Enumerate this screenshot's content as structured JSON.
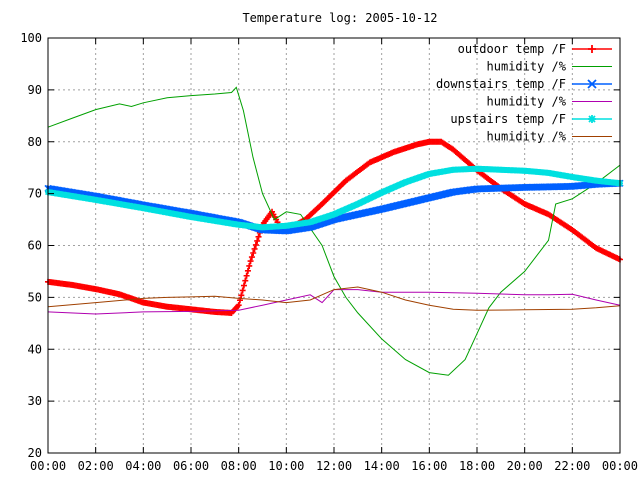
{
  "chart_data": {
    "type": "line",
    "title": "Temperature log: 2005-10-12",
    "xlabel": "",
    "ylabel": "",
    "xlim": [
      0,
      24
    ],
    "ylim": [
      20,
      100
    ],
    "grid": true,
    "legend_position": "top-right",
    "x_tick_labels": [
      "00:00",
      "02:00",
      "04:00",
      "06:00",
      "08:00",
      "10:00",
      "12:00",
      "14:00",
      "16:00",
      "18:00",
      "20:00",
      "22:00",
      "00:00"
    ],
    "y_tick_labels": [
      "20",
      "30",
      "40",
      "50",
      "60",
      "70",
      "80",
      "90",
      "100"
    ],
    "series": [
      {
        "name": "outdoor temp /F",
        "color": "#ff0000",
        "marker": "+",
        "points": [
          [
            0,
            53
          ],
          [
            1,
            52.4
          ],
          [
            2,
            51.6
          ],
          [
            3,
            50.6
          ],
          [
            4,
            49
          ],
          [
            5,
            48.2
          ],
          [
            6,
            47.7
          ],
          [
            7,
            47.2
          ],
          [
            7.7,
            47
          ],
          [
            8,
            48.5
          ],
          [
            8.5,
            57
          ],
          [
            9,
            64
          ],
          [
            9.4,
            66.5
          ],
          [
            9.8,
            63
          ],
          [
            10.2,
            63.5
          ],
          [
            10.8,
            65
          ],
          [
            11.5,
            68
          ],
          [
            12.5,
            72.5
          ],
          [
            13.5,
            76
          ],
          [
            14.5,
            78
          ],
          [
            15.5,
            79.5
          ],
          [
            16,
            80
          ],
          [
            16.5,
            80
          ],
          [
            17,
            78.5
          ],
          [
            17.5,
            76.5
          ],
          [
            18,
            74.5
          ],
          [
            19,
            71
          ],
          [
            20,
            68
          ],
          [
            21,
            66
          ],
          [
            22,
            63
          ],
          [
            23,
            59.5
          ],
          [
            24,
            57.3
          ]
        ]
      },
      {
        "name": "humidity /%",
        "color": "#00a000",
        "marker": "none",
        "points": [
          [
            0,
            82.8
          ],
          [
            1,
            84.5
          ],
          [
            2,
            86.2
          ],
          [
            3,
            87.3
          ],
          [
            3.5,
            86.8
          ],
          [
            4,
            87.5
          ],
          [
            5,
            88.5
          ],
          [
            6,
            88.9
          ],
          [
            7,
            89.2
          ],
          [
            7.7,
            89.5
          ],
          [
            7.9,
            90.5
          ],
          [
            8.2,
            86
          ],
          [
            8.6,
            77
          ],
          [
            9,
            70
          ],
          [
            9.5,
            65
          ],
          [
            10,
            66.5
          ],
          [
            10.6,
            66
          ],
          [
            11.5,
            60
          ],
          [
            12,
            54
          ],
          [
            12.5,
            50
          ],
          [
            13,
            47
          ],
          [
            14,
            42
          ],
          [
            15,
            38
          ],
          [
            16,
            35.5
          ],
          [
            16.8,
            35
          ],
          [
            17.5,
            38
          ],
          [
            18,
            43
          ],
          [
            18.5,
            48
          ],
          [
            19,
            51
          ],
          [
            20,
            55
          ],
          [
            21,
            61
          ],
          [
            21.3,
            68
          ],
          [
            22,
            69
          ],
          [
            23,
            72
          ],
          [
            24,
            75.5
          ]
        ]
      },
      {
        "name": "downstairs temp /F",
        "color": "#0060ff",
        "marker": "x",
        "points": [
          [
            0,
            71
          ],
          [
            2,
            69.5
          ],
          [
            4,
            67.8
          ],
          [
            6,
            66.2
          ],
          [
            8,
            64.5
          ],
          [
            9,
            63
          ],
          [
            10,
            62.8
          ],
          [
            11,
            63.5
          ],
          [
            12,
            65
          ],
          [
            14,
            67
          ],
          [
            16,
            69.2
          ],
          [
            17,
            70.3
          ],
          [
            18,
            70.9
          ],
          [
            20,
            71.2
          ],
          [
            22,
            71.4
          ],
          [
            23,
            71.8
          ],
          [
            24,
            72
          ]
        ]
      },
      {
        "name": "humidity /%",
        "color": "#b000b0",
        "marker": "none",
        "points": [
          [
            0,
            47.2
          ],
          [
            2,
            46.8
          ],
          [
            4,
            47.2
          ],
          [
            6,
            47.3
          ],
          [
            8,
            47.5
          ],
          [
            9,
            48.5
          ],
          [
            10,
            49.5
          ],
          [
            11,
            50.5
          ],
          [
            11.5,
            49
          ],
          [
            12,
            51.5
          ],
          [
            13,
            51.5
          ],
          [
            14,
            51
          ],
          [
            16,
            51
          ],
          [
            18,
            50.8
          ],
          [
            20,
            50.5
          ],
          [
            21,
            50.5
          ],
          [
            22,
            50.6
          ],
          [
            23,
            49.5
          ],
          [
            24,
            48.5
          ]
        ]
      },
      {
        "name": "upstairs temp /F",
        "color": "#00e0e0",
        "marker": "*",
        "points": [
          [
            0,
            70.3
          ],
          [
            2,
            68.8
          ],
          [
            4,
            67.2
          ],
          [
            6,
            65.5
          ],
          [
            8,
            64
          ],
          [
            9,
            63.5
          ],
          [
            10,
            63.8
          ],
          [
            11,
            64.5
          ],
          [
            12,
            66
          ],
          [
            13,
            68
          ],
          [
            14,
            70.2
          ],
          [
            15,
            72.2
          ],
          [
            16,
            73.8
          ],
          [
            17,
            74.6
          ],
          [
            18,
            74.8
          ],
          [
            20,
            74.4
          ],
          [
            21,
            74
          ],
          [
            22,
            73.2
          ],
          [
            23,
            72.5
          ],
          [
            24,
            72
          ]
        ]
      },
      {
        "name": "humidity /%",
        "color": "#a04000",
        "marker": "none",
        "points": [
          [
            0,
            48.2
          ],
          [
            2,
            49
          ],
          [
            4,
            49.8
          ],
          [
            5,
            50
          ],
          [
            6,
            50.1
          ],
          [
            7,
            50.2
          ],
          [
            8,
            49.8
          ],
          [
            9,
            49.5
          ],
          [
            10,
            49
          ],
          [
            11,
            49.5
          ],
          [
            12,
            51.5
          ],
          [
            13,
            52
          ],
          [
            14,
            51
          ],
          [
            15,
            49.5
          ],
          [
            16,
            48.5
          ],
          [
            17,
            47.7
          ],
          [
            18,
            47.5
          ],
          [
            20,
            47.6
          ],
          [
            22,
            47.7
          ],
          [
            23,
            48
          ],
          [
            24,
            48.4
          ]
        ]
      }
    ]
  }
}
